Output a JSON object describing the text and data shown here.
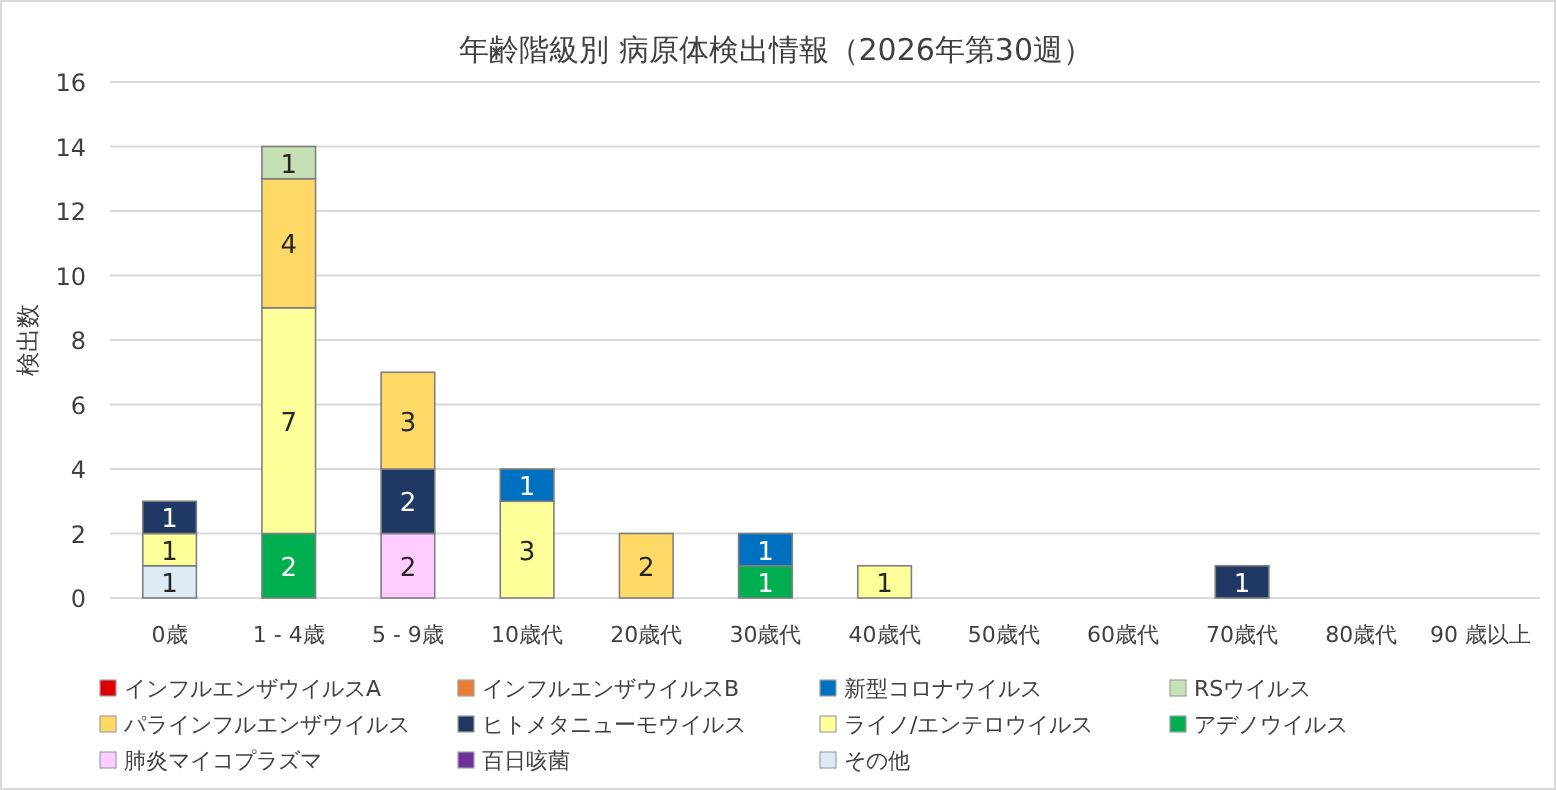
{
  "chart_data": {
    "type": "bar",
    "title": "年齢階級別 病原体検出情報（2026年第30週）",
    "ylabel": "検出数",
    "categories": [
      "0歳",
      "1 - 4歳",
      "5 - 9歳",
      "10歳代",
      "20歳代",
      "30歳代",
      "40歳代",
      "50歳代",
      "60歳代",
      "70歳代",
      "80歳代",
      "90 歳以上"
    ],
    "stacked": true,
    "data_labels": true,
    "grid": "y",
    "legend": "bottom",
    "ylim": [
      0,
      16
    ],
    "yticks": [
      0,
      2,
      4,
      6,
      8,
      10,
      12,
      14,
      16
    ],
    "series": [
      {
        "name": "その他",
        "color": "#ddebf7",
        "values": [
          1,
          null,
          null,
          null,
          null,
          null,
          null,
          null,
          null,
          null,
          null,
          null
        ]
      },
      {
        "name": "百日咳菌",
        "color": "#7030a0",
        "values": [
          null,
          null,
          null,
          null,
          null,
          null,
          null,
          null,
          null,
          null,
          null,
          null
        ]
      },
      {
        "name": "肺炎マイコプラズマ",
        "color": "#ffccff",
        "values": [
          null,
          null,
          2,
          null,
          null,
          null,
          null,
          null,
          null,
          null,
          null,
          null
        ]
      },
      {
        "name": "アデノウイルス",
        "color": "#00b050",
        "values": [
          null,
          2,
          null,
          null,
          null,
          1,
          null,
          null,
          null,
          null,
          null,
          null
        ]
      },
      {
        "name": "ライノ/エンテロウイルス",
        "color": "#ffff99",
        "values": [
          1,
          7,
          null,
          3,
          null,
          null,
          1,
          null,
          null,
          null,
          null,
          null
        ]
      },
      {
        "name": "ヒトメタニューモウイルス",
        "color": "#203864",
        "values": [
          1,
          null,
          2,
          null,
          null,
          null,
          null,
          null,
          null,
          1,
          null,
          null
        ]
      },
      {
        "name": "パラインフルエンザウイルス",
        "color": "#ffd966",
        "values": [
          null,
          4,
          3,
          null,
          2,
          null,
          null,
          null,
          null,
          null,
          null,
          null
        ]
      },
      {
        "name": "RSウイルス",
        "color": "#c5e0b4",
        "values": [
          null,
          1,
          null,
          null,
          null,
          null,
          null,
          null,
          null,
          null,
          null,
          null
        ]
      },
      {
        "name": "新型コロナウイルス",
        "color": "#0070c0",
        "values": [
          null,
          null,
          null,
          1,
          null,
          1,
          null,
          null,
          null,
          null,
          null,
          null
        ]
      },
      {
        "name": "インフルエンザウイルスB",
        "color": "#ed7d31",
        "values": [
          null,
          null,
          null,
          null,
          null,
          null,
          null,
          null,
          null,
          null,
          null,
          null
        ]
      },
      {
        "name": "インフルエンザウイルスA",
        "color": "#e00000",
        "values": [
          null,
          null,
          null,
          null,
          null,
          null,
          null,
          null,
          null,
          null,
          null,
          null
        ]
      }
    ]
  }
}
